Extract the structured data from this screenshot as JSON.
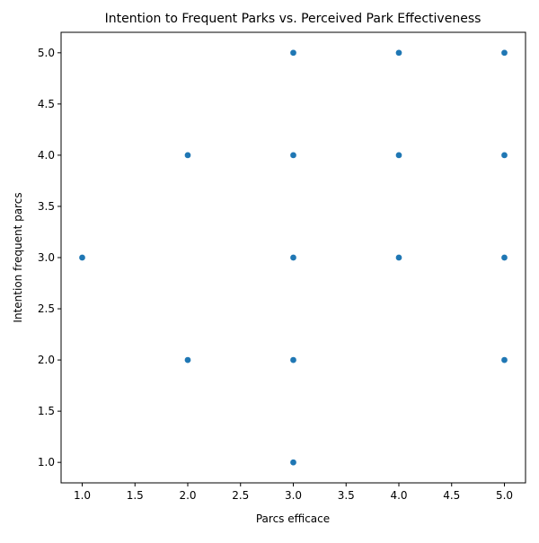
{
  "chart_data": {
    "type": "scatter",
    "title": "Intention to Frequent Parks vs. Perceived Park Effectiveness",
    "xlabel": "Parcs efficace",
    "ylabel": "Intention frequent parcs",
    "xlim": [
      0.8,
      5.2
    ],
    "ylim": [
      0.8,
      5.2
    ],
    "xticks": [
      1.0,
      1.5,
      2.0,
      2.5,
      3.0,
      3.5,
      4.0,
      4.5,
      5.0
    ],
    "yticks": [
      1.0,
      1.5,
      2.0,
      2.5,
      3.0,
      3.5,
      4.0,
      4.5,
      5.0
    ],
    "grid": false,
    "marker_color": "#1f77b4",
    "points": [
      {
        "x": 1,
        "y": 3
      },
      {
        "x": 2,
        "y": 2
      },
      {
        "x": 2,
        "y": 4
      },
      {
        "x": 3,
        "y": 1
      },
      {
        "x": 3,
        "y": 2
      },
      {
        "x": 3,
        "y": 3
      },
      {
        "x": 3,
        "y": 4
      },
      {
        "x": 3,
        "y": 5
      },
      {
        "x": 4,
        "y": 3
      },
      {
        "x": 4,
        "y": 4
      },
      {
        "x": 4,
        "y": 5
      },
      {
        "x": 5,
        "y": 2
      },
      {
        "x": 5,
        "y": 3
      },
      {
        "x": 5,
        "y": 4
      },
      {
        "x": 5,
        "y": 5
      }
    ]
  }
}
